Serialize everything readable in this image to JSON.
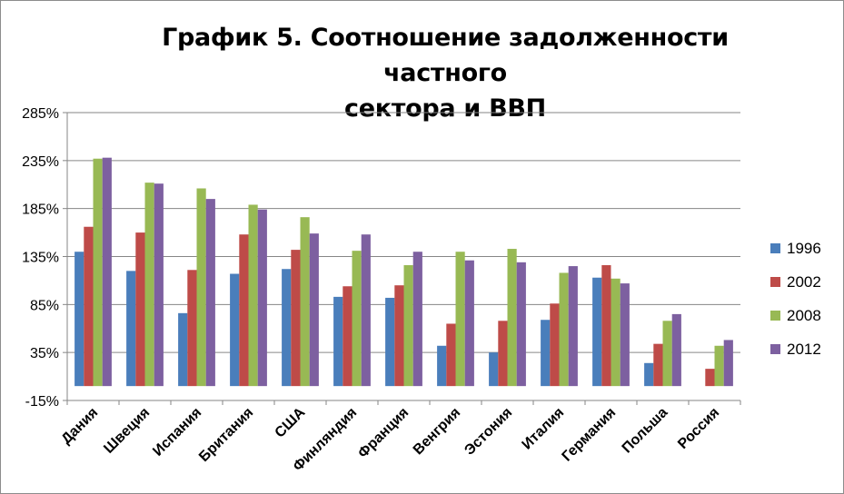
{
  "chart_data": {
    "type": "bar",
    "title": "График 5. Соотношение задолженности частного сектора и ВВП",
    "title_lines": [
      "График 5. Соотношение задолженности частного",
      "сектора и ВВП"
    ],
    "categories": [
      "Дания",
      "Швеция",
      "Испания",
      "Британия",
      "США",
      "Финляндия",
      "Франция",
      "Венгрия",
      "Эстония",
      "Италия",
      "Германия",
      "Польша",
      "Россия"
    ],
    "series": [
      {
        "name": "1996",
        "color": "#4a7ebb",
        "values": [
          140,
          120,
          76,
          117,
          122,
          93,
          92,
          42,
          35,
          69,
          113,
          24,
          null
        ]
      },
      {
        "name": "2002",
        "color": "#be4b48",
        "values": [
          166,
          160,
          121,
          158,
          142,
          104,
          105,
          65,
          68,
          86,
          126,
          44,
          18
        ]
      },
      {
        "name": "2008",
        "color": "#98b954",
        "values": [
          237,
          212,
          206,
          189,
          176,
          141,
          126,
          140,
          143,
          118,
          112,
          68,
          42
        ]
      },
      {
        "name": "2012",
        "color": "#7d60a0",
        "values": [
          238,
          211,
          195,
          184,
          159,
          158,
          140,
          131,
          129,
          125,
          107,
          75,
          48
        ]
      }
    ],
    "ylim": [
      -15,
      285
    ],
    "yticks": [
      -15,
      35,
      85,
      135,
      185,
      235,
      285
    ],
    "ytick_labels": [
      "-15%",
      "35%",
      "85%",
      "135%",
      "185%",
      "235%",
      "285%"
    ],
    "grid": true,
    "legend_position": "right"
  }
}
